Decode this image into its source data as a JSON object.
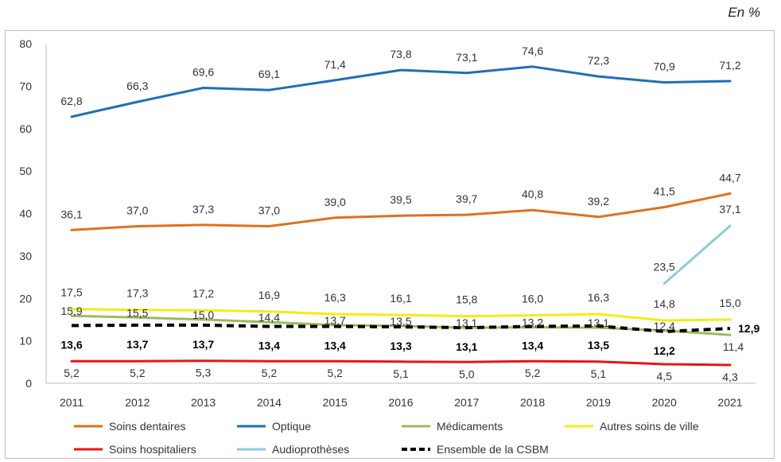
{
  "unit_label": "En %",
  "chart_data": {
    "type": "line",
    "title": "",
    "xlabel": "",
    "ylabel": "",
    "ylim": [
      0,
      80
    ],
    "yticks": [
      0,
      10,
      20,
      30,
      40,
      50,
      60,
      70,
      80
    ],
    "categories": [
      "2011",
      "2012",
      "2013",
      "2014",
      "2015",
      "2016",
      "2017",
      "2018",
      "2019",
      "2020",
      "2021"
    ],
    "grid": false,
    "legend_placement": "bottom",
    "series": [
      {
        "name": "Soins dentaires",
        "color": "#e07020",
        "dashed": false,
        "bold_labels": false,
        "values": [
          36.1,
          37.0,
          37.3,
          37.0,
          39.0,
          39.5,
          39.7,
          40.8,
          39.2,
          41.5,
          44.7
        ],
        "labels": [
          "36,1",
          "37,0",
          "37,3",
          "37,0",
          "39,0",
          "39,5",
          "39,7",
          "40,8",
          "39,2",
          "41,5",
          "44,7"
        ]
      },
      {
        "name": "Optique",
        "color": "#1f6fb4",
        "dashed": false,
        "bold_labels": false,
        "values": [
          62.8,
          66.3,
          69.6,
          69.1,
          71.4,
          73.8,
          73.1,
          74.6,
          72.3,
          70.9,
          71.2
        ],
        "labels": [
          "62,8",
          "66,3",
          "69,6",
          "69,1",
          "71,4",
          "73,8",
          "73,1",
          "74,6",
          "72,3",
          "70,9",
          "71,2"
        ]
      },
      {
        "name": "Médicaments",
        "color": "#9cbb5c",
        "dashed": false,
        "bold_labels": false,
        "values": [
          15.9,
          15.5,
          15.0,
          14.4,
          13.7,
          13.5,
          13.1,
          13.2,
          13.1,
          12.4,
          11.4
        ],
        "labels": [
          "15,9",
          "15,5",
          "15,0",
          "14,4",
          "13,7",
          "13,5",
          "13,1",
          "13,2",
          "13,1",
          "12,4",
          "11,4"
        ]
      },
      {
        "name": "Autres soins de ville",
        "color": "#f5ec14",
        "dashed": false,
        "bold_labels": false,
        "values": [
          17.5,
          17.3,
          17.2,
          16.9,
          16.3,
          16.1,
          15.8,
          16.0,
          16.3,
          14.8,
          15.0
        ],
        "labels": [
          "17,5",
          "17,3",
          "17,2",
          "16,9",
          "16,3",
          "16,1",
          "15,8",
          "16,0",
          "16,3",
          "14,8",
          "15,0"
        ]
      },
      {
        "name": "Soins hospitaliers",
        "color": "#e8141c",
        "dashed": false,
        "bold_labels": false,
        "values": [
          5.2,
          5.2,
          5.3,
          5.2,
          5.2,
          5.1,
          5.0,
          5.2,
          5.1,
          4.5,
          4.3
        ],
        "labels": [
          "5,2",
          "5,2",
          "5,3",
          "5,2",
          "5,2",
          "5,1",
          "5,0",
          "5,2",
          "5,1",
          "4,5",
          "4,3"
        ]
      },
      {
        "name": "Audioprothèses",
        "color": "#91c9dc",
        "dashed": false,
        "bold_labels": false,
        "values": [
          null,
          null,
          null,
          null,
          null,
          null,
          null,
          null,
          null,
          23.5,
          37.1
        ],
        "labels": [
          "",
          "",
          "",
          "",
          "",
          "",
          "",
          "",
          "",
          "23,5",
          "37,1"
        ]
      },
      {
        "name": "Ensemble de la CSBM",
        "color": "#000000",
        "dashed": true,
        "bold_labels": true,
        "values": [
          13.6,
          13.7,
          13.7,
          13.4,
          13.4,
          13.3,
          13.1,
          13.4,
          13.5,
          12.2,
          12.9
        ],
        "labels": [
          "13,6",
          "13,7",
          "13,7",
          "13,4",
          "13,4",
          "13,3",
          "13,1",
          "13,4",
          "13,5",
          "12,2",
          "12,9"
        ]
      }
    ]
  }
}
